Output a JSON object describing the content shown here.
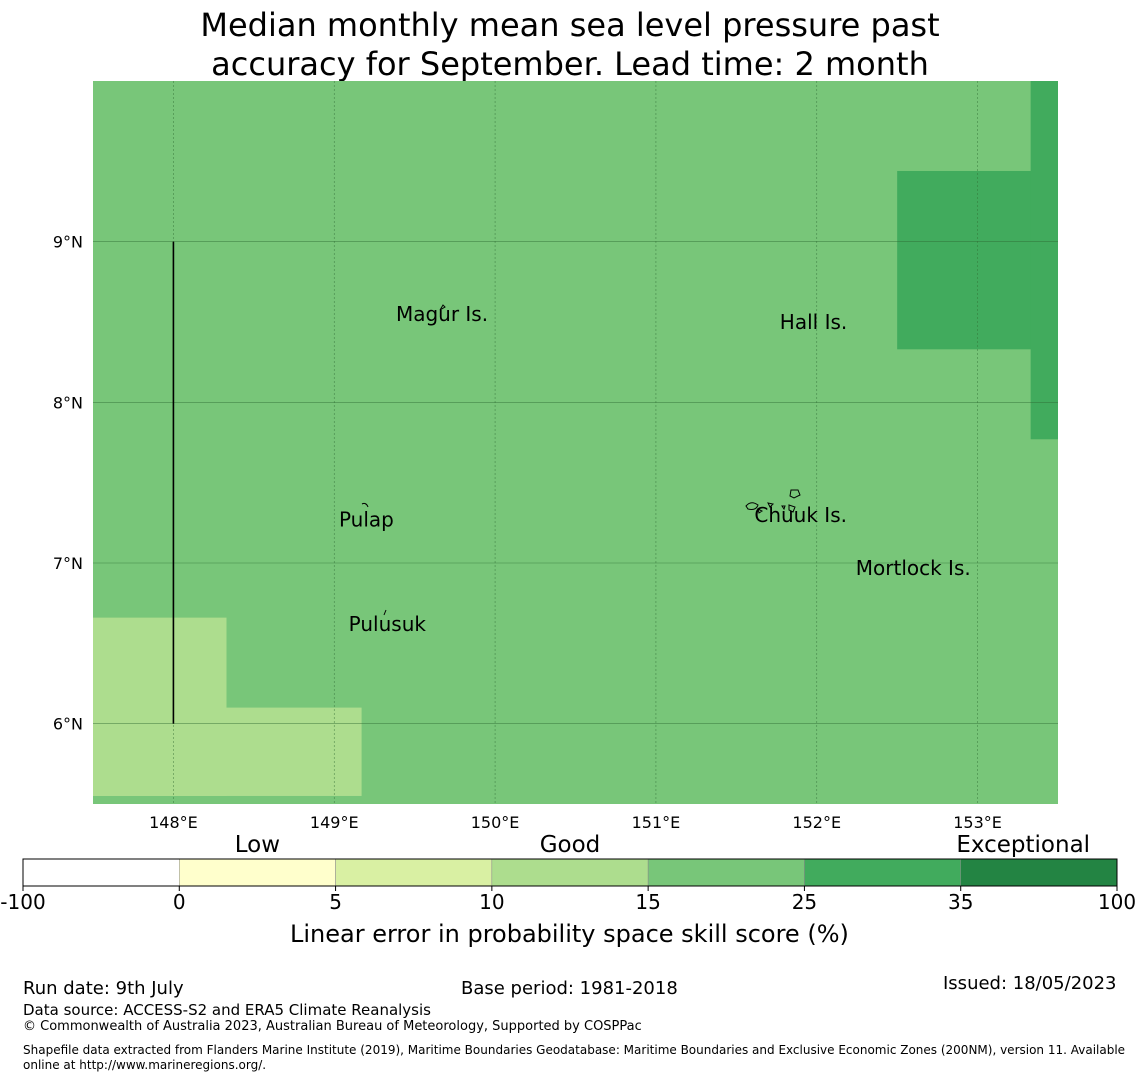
{
  "title": {
    "line1": "Median monthly mean sea level pressure past",
    "line2": "accuracy for September. Lead time: 2 month"
  },
  "map": {
    "lon_range": [
      147.5,
      153.5
    ],
    "lat_range": [
      5.5,
      10.0
    ],
    "x_ticks": [
      {
        "value": 148,
        "label": "148°E"
      },
      {
        "value": 149,
        "label": "149°E"
      },
      {
        "value": 150,
        "label": "150°E"
      },
      {
        "value": 151,
        "label": "151°E"
      },
      {
        "value": 152,
        "label": "152°E"
      },
      {
        "value": 153,
        "label": "153°E"
      }
    ],
    "y_ticks": [
      {
        "value": 9,
        "label": "9°N"
      },
      {
        "value": 8,
        "label": "8°N"
      },
      {
        "value": 7,
        "label": "7°N"
      },
      {
        "value": 6,
        "label": "6°N"
      }
    ],
    "cells": [
      {
        "lon0": 147.5,
        "lon1": 153.5,
        "lat0": 5.5,
        "lat1": 10.0,
        "color": "#78c679"
      },
      {
        "lon0": 147.5,
        "lon1": 148.33,
        "lat0": 5.55,
        "lat1": 6.66,
        "color": "#addd8e"
      },
      {
        "lon0": 147.5,
        "lon1": 149.17,
        "lat0": 5.55,
        "lat1": 6.1,
        "color": "#addd8e"
      },
      {
        "lon0": 152.5,
        "lon1": 153.5,
        "lat0": 8.33,
        "lat1": 9.44,
        "color": "#41ab5d"
      },
      {
        "lon0": 153.33,
        "lon1": 153.5,
        "lat0": 7.77,
        "lat1": 10.0,
        "color": "#41ab5d"
      }
    ],
    "meridian_line": {
      "lon": 148,
      "lat_from": 6.0,
      "lat_to": 9.0
    },
    "places": [
      {
        "name": "Magur Is.",
        "lon": 149.67,
        "lat": 8.55
      },
      {
        "name": "Hall Is.",
        "lon": 151.98,
        "lat": 8.5
      },
      {
        "name": "Pulap",
        "lon": 149.2,
        "lat": 7.27
      },
      {
        "name": "Chuuk Is.",
        "lon": 151.9,
        "lat": 7.3
      },
      {
        "name": "Mortlock Is.",
        "lon": 152.6,
        "lat": 6.97
      },
      {
        "name": "Pulusuk",
        "lon": 149.33,
        "lat": 6.62
      }
    ]
  },
  "colorbar": {
    "ticks": [
      "-100",
      "0",
      "5",
      "10",
      "15",
      "25",
      "35",
      "100"
    ],
    "colors": [
      "#ffffff",
      "#ffffcc",
      "#d9f0a3",
      "#addd8e",
      "#78c679",
      "#41ab5d",
      "#238443"
    ],
    "categories": [
      {
        "label": "Low",
        "at": 1.5
      },
      {
        "label": "Good",
        "at": 3.5
      },
      {
        "label": "Exceptional",
        "at": 6.4
      }
    ],
    "label": "Linear error in probability space skill score (%)"
  },
  "footer": {
    "run_date": "Run date: 9th July",
    "base_period": "Base period: 1981-2018",
    "issued": "Issued: 18/05/2023",
    "data_source": "Data source: ACCESS-S2 and ERA5 Climate Reanalysis",
    "copyright": "© Commonwealth of Australia 2023, Australian Bureau of Meteorology, Supported by COSPPac",
    "shapefile_line1": "Shapefile data extracted from Flanders Marine Institute (2019), Maritime Boundaries Geodatabase: Maritime Boundaries and Exclusive Economic Zones (200NM), version 11. Available",
    "shapefile_line2": "online at http://www.marineregions.org/."
  }
}
